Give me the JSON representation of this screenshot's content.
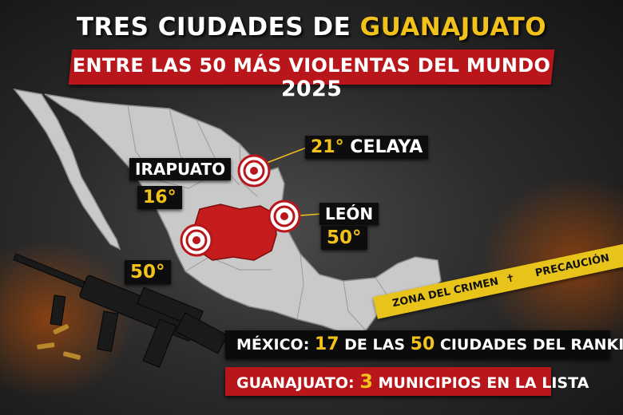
{
  "header": {
    "title_prefix": "TRES CIUDADES DE ",
    "title_highlight": "GUANAJUATO",
    "subtitle_text": "ENTRE LAS 50 MÁS VIOLENTAS DEL MUNDO ",
    "subtitle_year": "2025"
  },
  "cities": {
    "celaya": {
      "rank": "21°",
      "name": "CELAYA"
    },
    "irapuato": {
      "name": "IRAPUATO",
      "rank": "16°"
    },
    "leon": {
      "name": "LEÓN",
      "rank": "50°"
    },
    "fourth": {
      "rank": "50°"
    }
  },
  "tape": {
    "text1": "ZONA DEL CRIMEN",
    "text2": "PRECAUCIÓN"
  },
  "facts": {
    "mexico_prefix": "MÉXICO: ",
    "mexico_count": "17",
    "mexico_mid": " DE LAS ",
    "mexico_total": "50",
    "mexico_suffix": " CIUDADES DEL RANKING",
    "gto_prefix": "GUANAJUATO: ",
    "gto_count": "3",
    "gto_suffix": " MUNICIPIOS EN LA LISTA"
  },
  "colors": {
    "accent_red": "#b8161b",
    "accent_gold": "#f2c21b",
    "map_fill": "#c9c9c9",
    "highlight_state": "#c51d1d"
  },
  "icons": [
    "target-marker-icon",
    "rifle-icon",
    "crime-tape-icon"
  ]
}
